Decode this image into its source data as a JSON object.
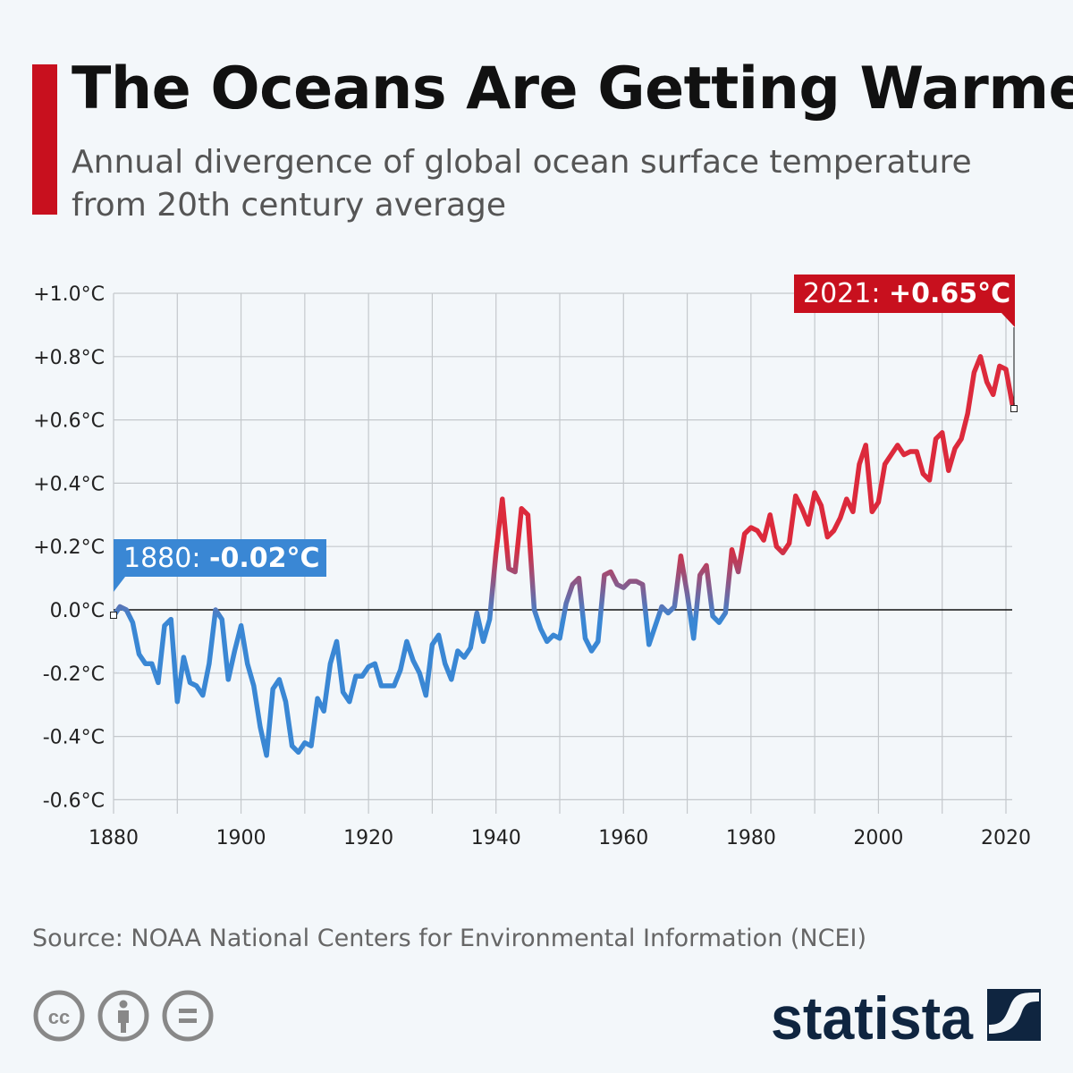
{
  "header": {
    "title": "The Oceans Are Getting Warmer",
    "subtitle": "Annual divergence of global ocean surface temperature from 20th century average"
  },
  "chart_data": {
    "type": "line",
    "title": "The Oceans Are Getting Warmer",
    "subtitle": "Annual divergence of global ocean surface temperature from 20th century average",
    "xlabel": "",
    "ylabel": "",
    "xlim": [
      1880,
      2021
    ],
    "ylim": [
      -0.6,
      1.0
    ],
    "grid": true,
    "x_ticks": [
      "1880",
      "1900",
      "1920",
      "1940",
      "1960",
      "1980",
      "2000",
      "2020"
    ],
    "y_ticks": [
      "+1.0°C",
      "+0.8°C",
      "+0.6°C",
      "+0.4°C",
      "+0.2°C",
      "0.0°C",
      "-0.2°C",
      "-0.4°C",
      "-0.6°C"
    ],
    "y_tick_values": [
      1.0,
      0.8,
      0.6,
      0.4,
      0.2,
      0.0,
      -0.2,
      -0.4,
      -0.6
    ],
    "x_start": 1880,
    "values": [
      -0.02,
      0.01,
      0.0,
      -0.04,
      -0.14,
      -0.17,
      -0.17,
      -0.23,
      -0.05,
      -0.03,
      -0.29,
      -0.15,
      -0.23,
      -0.24,
      -0.27,
      -0.17,
      0.0,
      -0.03,
      -0.22,
      -0.13,
      -0.05,
      -0.17,
      -0.24,
      -0.37,
      -0.46,
      -0.25,
      -0.22,
      -0.29,
      -0.43,
      -0.45,
      -0.42,
      -0.43,
      -0.28,
      -0.32,
      -0.17,
      -0.1,
      -0.26,
      -0.29,
      -0.21,
      -0.21,
      -0.18,
      -0.17,
      -0.24,
      -0.24,
      -0.24,
      -0.19,
      -0.1,
      -0.16,
      -0.2,
      -0.27,
      -0.11,
      -0.08,
      -0.17,
      -0.22,
      -0.13,
      -0.15,
      -0.12,
      -0.01,
      -0.1,
      -0.03,
      0.18,
      0.35,
      0.13,
      0.12,
      0.32,
      0.3,
      0.0,
      -0.06,
      -0.1,
      -0.08,
      -0.09,
      0.02,
      0.08,
      0.1,
      -0.09,
      -0.13,
      -0.1,
      0.11,
      0.12,
      0.08,
      0.07,
      0.09,
      0.09,
      0.08,
      -0.11,
      -0.05,
      0.01,
      -0.01,
      0.01,
      0.17,
      0.05,
      -0.09,
      0.11,
      0.14,
      -0.02,
      -0.04,
      -0.01,
      0.19,
      0.12,
      0.24,
      0.26,
      0.25,
      0.22,
      0.3,
      0.2,
      0.18,
      0.21,
      0.36,
      0.32,
      0.27,
      0.37,
      0.33,
      0.23,
      0.25,
      0.29,
      0.35,
      0.31,
      0.46,
      0.52,
      0.31,
      0.34,
      0.46,
      0.49,
      0.52,
      0.49,
      0.5,
      0.5,
      0.43,
      0.41,
      0.54,
      0.56,
      0.44,
      0.51,
      0.54,
      0.62,
      0.75,
      0.8,
      0.72,
      0.68,
      0.77,
      0.76,
      0.65
    ],
    "annotations": [
      {
        "label": "1880: ",
        "value": "-0.02°C",
        "year": 1880,
        "y": -0.02,
        "color": "#3a87d4"
      },
      {
        "label": "2021: ",
        "value": "+0.65°C",
        "year": 2021,
        "y": 0.65,
        "color": "#c8101e"
      }
    ],
    "colors": {
      "negative": "#3a87d4",
      "positive": "#dc2a3c"
    }
  },
  "footer": {
    "source": "Source: NOAA National Centers for Environmental Information (NCEI)",
    "license_icons": [
      "cc-icon",
      "attribution-icon",
      "no-derivatives-icon"
    ],
    "brand": "statista"
  }
}
